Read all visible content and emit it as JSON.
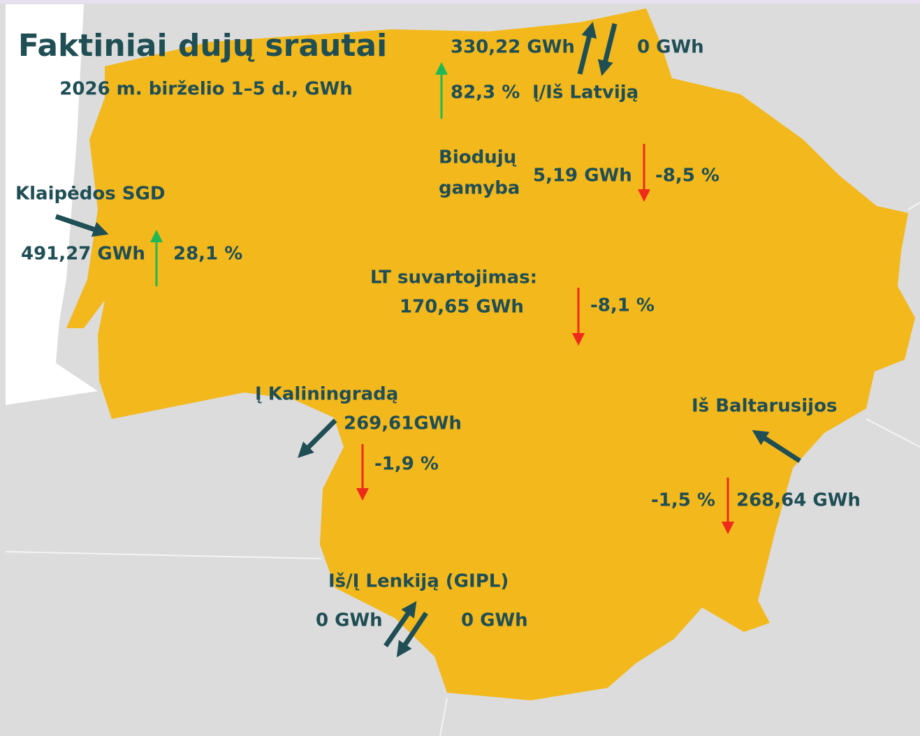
{
  "title": "Faktiniai dujų srautai",
  "subtitle": "2026 m. birželio 1–5 d., GWh",
  "latvia": {
    "label": "Į/Iš Latviją",
    "in": "330,22 GWh",
    "out": "0 GWh",
    "change": "82,3 %"
  },
  "biogas": {
    "label_line1": "Biodujų",
    "label_line2": "gamyba",
    "value": "5,19 GWh",
    "change": "-8,5 %"
  },
  "klaipeda": {
    "label": "Klaipėdos SGD",
    "value": "491,27 GWh",
    "change": "28,1 %"
  },
  "consumption": {
    "label": "LT suvartojimas:",
    "value": "170,65 GWh",
    "change": "-8,1 %"
  },
  "kaliningrad": {
    "label": "Į Kaliningradą",
    "value": "269,61GWh",
    "change": "-1,9 %"
  },
  "belarus": {
    "label": "Iš Baltarusijos",
    "value": "268,64 GWh",
    "change": "-1,5 %"
  },
  "poland": {
    "label": "Iš/Į Lenkiją (GIPL)",
    "in": "0 GWh",
    "out": "0 GWh"
  }
}
